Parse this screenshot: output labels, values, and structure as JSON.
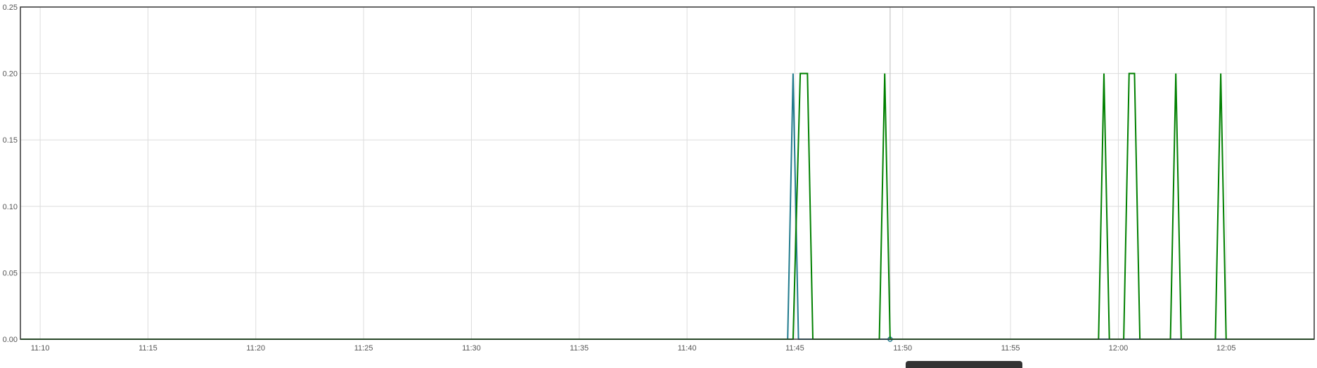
{
  "chart_data": {
    "type": "line",
    "title": "",
    "xlabel": "",
    "ylabel": "",
    "x_unit": "time (HH:MM)",
    "xlim": [
      "11:09:05",
      "12:09:05"
    ],
    "ylim": [
      0,
      0.25
    ],
    "x_ticks": [
      "11:10",
      "11:15",
      "11:20",
      "11:25",
      "11:30",
      "11:35",
      "11:40",
      "11:45",
      "11:50",
      "11:55",
      "12:00",
      "12:05"
    ],
    "y_ticks": [
      "0.00",
      "0.05",
      "0.10",
      "0.15",
      "0.20",
      "0.25"
    ],
    "grid": true,
    "legend": "none",
    "crosshair_x": "11:49:25",
    "series": [
      {
        "color": "#1f7a8c",
        "points": [
          [
            "11:09:05",
            0
          ],
          [
            "11:44:40",
            0
          ],
          [
            "11:44:55",
            0.2
          ],
          [
            "11:45:10",
            0
          ],
          [
            "12:09:05",
            0
          ]
        ]
      },
      {
        "color": "#008000",
        "points": [
          [
            "11:09:05",
            0
          ],
          [
            "11:44:55",
            0
          ],
          [
            "11:45:15",
            0.2
          ],
          [
            "11:45:35",
            0.2
          ],
          [
            "11:45:50",
            0
          ],
          [
            "11:48:55",
            0
          ],
          [
            "11:49:10",
            0.2
          ],
          [
            "11:49:25",
            0
          ],
          [
            "11:59:05",
            0
          ],
          [
            "11:59:20",
            0.2
          ],
          [
            "11:59:35",
            0
          ],
          [
            "12:00:15",
            0
          ],
          [
            "12:00:30",
            0.2
          ],
          [
            "12:00:45",
            0.2
          ],
          [
            "12:01:00",
            0
          ],
          [
            "12:02:25",
            0
          ],
          [
            "12:02:40",
            0.2
          ],
          [
            "12:02:55",
            0
          ],
          [
            "12:04:30",
            0
          ],
          [
            "12:04:45",
            0.2
          ],
          [
            "12:05:00",
            0
          ],
          [
            "12:09:05",
            0
          ]
        ]
      }
    ]
  }
}
